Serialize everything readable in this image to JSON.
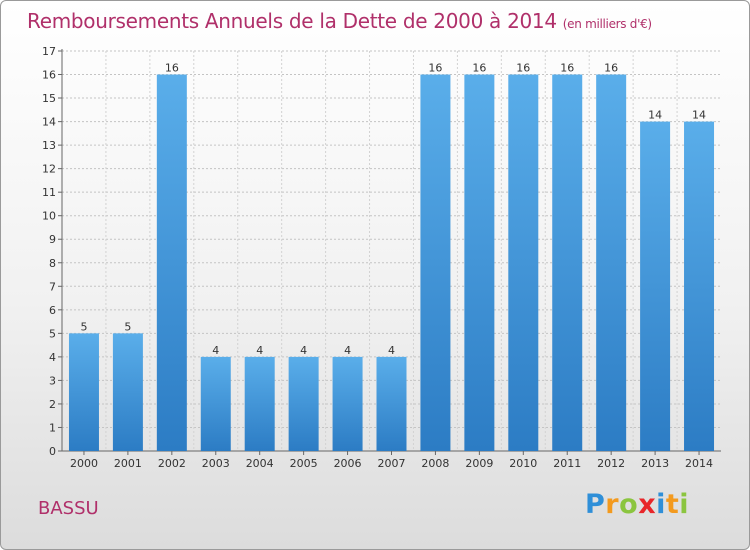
{
  "title": "Remboursements Annuels de la Dette de 2000 à 2014",
  "unit": "(en milliers d'€)",
  "place": "BASSU",
  "brand": {
    "letters": [
      "P",
      "r",
      "o",
      "x",
      "i",
      "t",
      "i"
    ],
    "colors": [
      "#2f8fd8",
      "#f39a1e",
      "#8bc53f",
      "#e8262a",
      "#2f8fd8",
      "#f39a1e",
      "#8bc53f"
    ]
  },
  "colors": {
    "bar": "#4a9de0",
    "bar_dark": "#2c7cc4",
    "title": "#b0306a",
    "grid": "#bfbfbf"
  },
  "chart_data": {
    "type": "bar",
    "title": "Remboursements Annuels de la Dette de 2000 à 2014",
    "xlabel": "",
    "ylabel": "",
    "categories": [
      "2000",
      "2001",
      "2002",
      "2003",
      "2004",
      "2005",
      "2006",
      "2007",
      "2008",
      "2009",
      "2010",
      "2011",
      "2012",
      "2013",
      "2014"
    ],
    "values": [
      5,
      5,
      16,
      4,
      4,
      4,
      4,
      4,
      16,
      16,
      16,
      16,
      16,
      14,
      14
    ],
    "ylim": [
      0,
      17
    ],
    "yticks": [
      "0",
      "1",
      "2",
      "3",
      "4",
      "5",
      "6",
      "7",
      "8",
      "9",
      "10",
      "11",
      "12",
      "13",
      "14",
      "15",
      "16",
      "17"
    ],
    "grid": true
  }
}
